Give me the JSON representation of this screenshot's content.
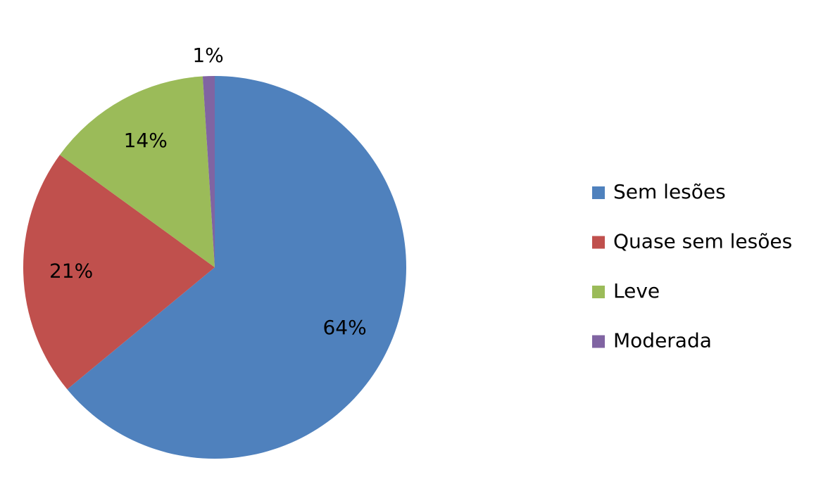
{
  "chart_data": {
    "type": "pie",
    "categories": [
      "Sem lesões",
      "Quase sem lesões",
      "Leve",
      "Moderada"
    ],
    "values": [
      64,
      21,
      14,
      1
    ],
    "value_labels": [
      "64%",
      "21%",
      "14%",
      "1%"
    ],
    "colors": [
      "#4f81bd",
      "#c0504d",
      "#9bbb59",
      "#8064a2"
    ],
    "legend": "right"
  }
}
